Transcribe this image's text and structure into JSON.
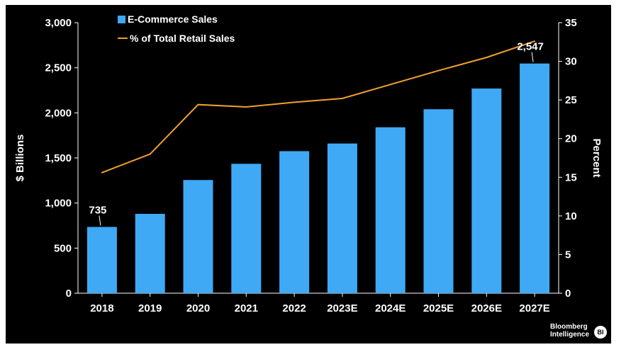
{
  "chart_data": {
    "type": "bar",
    "categories": [
      "2018",
      "2019",
      "2020",
      "2021",
      "2022",
      "2023E",
      "2024E",
      "2025E",
      "2026E",
      "2027E"
    ],
    "series": [
      {
        "name": "E-Commerce Sales",
        "type": "bar",
        "axis": "left",
        "values": [
          735,
          880,
          1255,
          1435,
          1575,
          1660,
          1840,
          2040,
          2270,
          2547
        ]
      },
      {
        "name": "% of Total Retail Sales",
        "type": "line",
        "axis": "right",
        "values": [
          15.6,
          18.0,
          24.4,
          24.1,
          24.7,
          25.2,
          27.0,
          28.8,
          30.5,
          32.6
        ]
      }
    ],
    "ylabel": "$ Billions",
    "y2label": "Percent",
    "ylim": [
      0,
      3000
    ],
    "y2lim": [
      0,
      35
    ],
    "yticks": [
      "0",
      "500",
      "1,000",
      "1,500",
      "2,000",
      "2,500",
      "3,000"
    ],
    "y2ticks": [
      "0",
      "5",
      "10",
      "15",
      "20",
      "25",
      "30",
      "35"
    ],
    "data_labels": [
      {
        "category": "2018",
        "text": "735"
      },
      {
        "category": "2027E",
        "text": "2,547"
      }
    ],
    "legend_position": "top-left",
    "grid": false
  },
  "colors": {
    "bar": "#3fa9f5",
    "line": "#f0a030",
    "background": "#000000",
    "text": "#ffffff"
  },
  "brand": {
    "line1": "Bloomberg",
    "line2": "Intelligence",
    "badge": "BI"
  }
}
